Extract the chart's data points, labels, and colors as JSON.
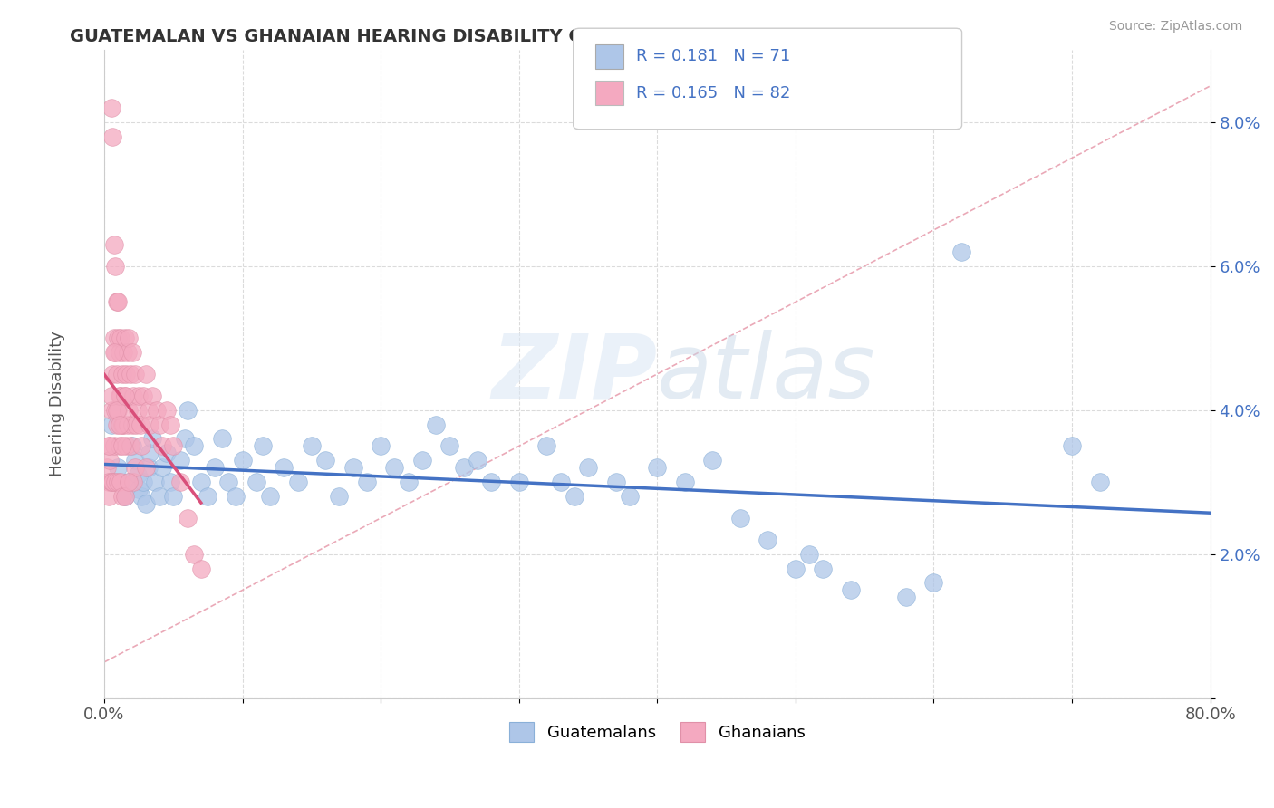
{
  "title": "GUATEMALAN VS GHANAIAN HEARING DISABILITY CORRELATION CHART",
  "source": "Source: ZipAtlas.com",
  "ylabel": "Hearing Disability",
  "xlim": [
    0.0,
    0.8
  ],
  "ylim": [
    0.0,
    0.09
  ],
  "xtick_positions": [
    0.0,
    0.1,
    0.2,
    0.3,
    0.4,
    0.5,
    0.6,
    0.7,
    0.8
  ],
  "xticklabels": [
    "0.0%",
    "",
    "",
    "",
    "",
    "",
    "",
    "",
    "80.0%"
  ],
  "ytick_positions": [
    0.0,
    0.02,
    0.04,
    0.06,
    0.08
  ],
  "yticklabels": [
    "",
    "2.0%",
    "4.0%",
    "6.0%",
    "8.0%"
  ],
  "legend_r_guatemalan": "0.181",
  "legend_n_guatemalan": "71",
  "legend_r_ghanaian": "0.165",
  "legend_n_ghanaian": "82",
  "guatemalan_color": "#aec6e8",
  "ghanaian_color": "#f4a9c0",
  "guatemalan_line_color": "#4472c4",
  "ghanaian_line_color": "#d94f7a",
  "diag_line_color": "#e8a0b0",
  "tick_color": "#4472c4",
  "watermark_color": "#e8eef5",
  "guat_x": [
    0.005,
    0.01,
    0.015,
    0.018,
    0.02,
    0.022,
    0.024,
    0.025,
    0.027,
    0.028,
    0.03,
    0.032,
    0.033,
    0.035,
    0.037,
    0.04,
    0.042,
    0.045,
    0.048,
    0.05,
    0.055,
    0.058,
    0.06,
    0.065,
    0.07,
    0.075,
    0.08,
    0.085,
    0.09,
    0.095,
    0.1,
    0.11,
    0.115,
    0.12,
    0.13,
    0.14,
    0.15,
    0.16,
    0.17,
    0.18,
    0.19,
    0.2,
    0.21,
    0.22,
    0.23,
    0.24,
    0.25,
    0.26,
    0.27,
    0.28,
    0.3,
    0.32,
    0.33,
    0.34,
    0.35,
    0.37,
    0.38,
    0.4,
    0.42,
    0.44,
    0.46,
    0.48,
    0.5,
    0.51,
    0.52,
    0.54,
    0.58,
    0.6,
    0.62,
    0.7,
    0.72
  ],
  "guat_y": [
    0.038,
    0.032,
    0.028,
    0.03,
    0.035,
    0.033,
    0.031,
    0.029,
    0.028,
    0.03,
    0.027,
    0.032,
    0.034,
    0.036,
    0.03,
    0.028,
    0.032,
    0.034,
    0.03,
    0.028,
    0.033,
    0.036,
    0.04,
    0.035,
    0.03,
    0.028,
    0.032,
    0.036,
    0.03,
    0.028,
    0.033,
    0.03,
    0.035,
    0.028,
    0.032,
    0.03,
    0.035,
    0.033,
    0.028,
    0.032,
    0.03,
    0.035,
    0.032,
    0.03,
    0.033,
    0.038,
    0.035,
    0.032,
    0.033,
    0.03,
    0.03,
    0.035,
    0.03,
    0.028,
    0.032,
    0.03,
    0.028,
    0.032,
    0.03,
    0.033,
    0.025,
    0.022,
    0.018,
    0.02,
    0.018,
    0.015,
    0.014,
    0.016,
    0.062,
    0.035,
    0.03
  ],
  "ghan_x": [
    0.002,
    0.003,
    0.003,
    0.004,
    0.004,
    0.005,
    0.005,
    0.005,
    0.006,
    0.006,
    0.006,
    0.007,
    0.007,
    0.007,
    0.008,
    0.008,
    0.008,
    0.008,
    0.009,
    0.009,
    0.009,
    0.01,
    0.01,
    0.01,
    0.01,
    0.011,
    0.011,
    0.011,
    0.012,
    0.012,
    0.012,
    0.013,
    0.013,
    0.013,
    0.014,
    0.014,
    0.015,
    0.015,
    0.015,
    0.016,
    0.016,
    0.017,
    0.017,
    0.018,
    0.018,
    0.019,
    0.019,
    0.02,
    0.02,
    0.021,
    0.021,
    0.022,
    0.022,
    0.023,
    0.024,
    0.025,
    0.026,
    0.027,
    0.028,
    0.03,
    0.03,
    0.032,
    0.033,
    0.035,
    0.038,
    0.04,
    0.042,
    0.045,
    0.048,
    0.05,
    0.055,
    0.06,
    0.065,
    0.07,
    0.003,
    0.005,
    0.007,
    0.009,
    0.011,
    0.013,
    0.015,
    0.018
  ],
  "ghan_y": [
    0.032,
    0.03,
    0.028,
    0.035,
    0.033,
    0.082,
    0.04,
    0.03,
    0.078,
    0.045,
    0.03,
    0.063,
    0.05,
    0.035,
    0.06,
    0.048,
    0.04,
    0.03,
    0.055,
    0.045,
    0.038,
    0.055,
    0.05,
    0.04,
    0.03,
    0.048,
    0.042,
    0.035,
    0.05,
    0.042,
    0.03,
    0.045,
    0.038,
    0.028,
    0.048,
    0.038,
    0.05,
    0.042,
    0.028,
    0.045,
    0.035,
    0.048,
    0.038,
    0.05,
    0.04,
    0.045,
    0.035,
    0.048,
    0.038,
    0.042,
    0.03,
    0.045,
    0.032,
    0.038,
    0.04,
    0.042,
    0.038,
    0.035,
    0.042,
    0.045,
    0.032,
    0.04,
    0.038,
    0.042,
    0.04,
    0.038,
    0.035,
    0.04,
    0.038,
    0.035,
    0.03,
    0.025,
    0.02,
    0.018,
    0.035,
    0.042,
    0.048,
    0.04,
    0.038,
    0.035,
    0.042,
    0.03
  ]
}
